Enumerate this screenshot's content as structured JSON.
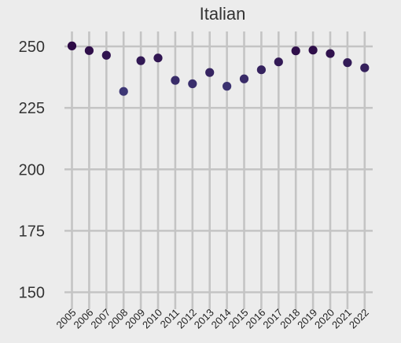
{
  "chart_data": {
    "type": "scatter",
    "title": "Italian",
    "xlabel": "",
    "ylabel": "",
    "x": [
      "2005",
      "2006",
      "2007",
      "2008",
      "2009",
      "2010",
      "2011",
      "2012",
      "2013",
      "2014",
      "2015",
      "2016",
      "2017",
      "2018",
      "2019",
      "2020",
      "2021",
      "2022"
    ],
    "values": [
      250.2,
      248.3,
      246.4,
      231.7,
      244.2,
      245.3,
      236.2,
      234.8,
      239.4,
      233.8,
      236.8,
      240.5,
      243.7,
      248.2,
      248.5,
      247.1,
      243.4,
      241.3
    ],
    "ylim": [
      150,
      250
    ],
    "yticks": [
      150,
      175,
      200,
      225,
      250
    ],
    "grid": true,
    "legend": "none",
    "point_color_scale": {
      "low": "#3d3775",
      "high": "#2d0a45"
    },
    "background": "#ececec",
    "grid_color": "#c4c4c4"
  }
}
